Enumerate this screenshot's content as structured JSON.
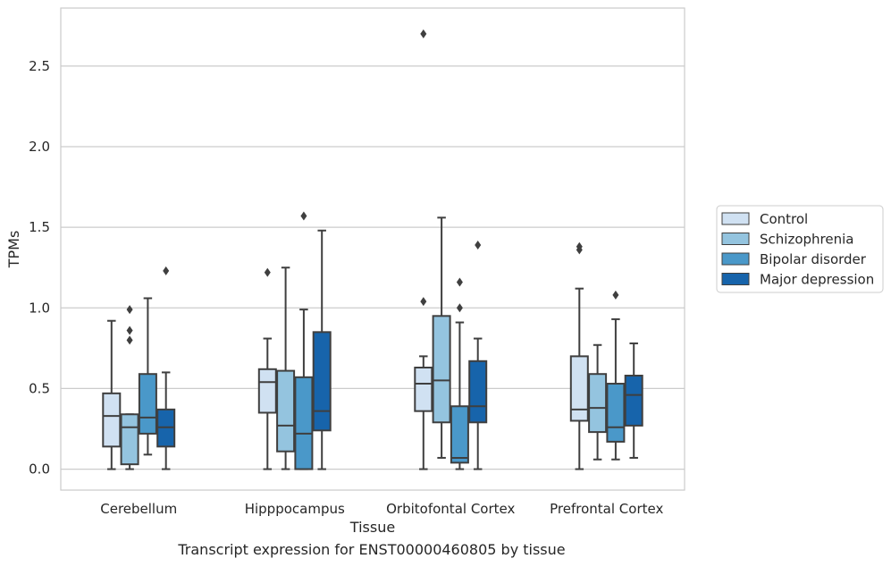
{
  "caption": "Transcript expression for ENST00000460805 by tissue",
  "chart_data": {
    "type": "box",
    "xlabel": "Tissue",
    "ylabel": "TPMs",
    "ylim": [
      -0.13,
      2.86
    ],
    "yticks": [
      "0.0",
      "0.5",
      "1.0",
      "1.5",
      "2.0",
      "2.5"
    ],
    "grid": "horizontal",
    "legend_position": "right",
    "categories": [
      "Cerebellum",
      "Hipppocampus",
      "Orbitofontal Cortex",
      "Prefrontal Cortex"
    ],
    "series": [
      {
        "name": "Control",
        "color": "#d0e1f2",
        "boxes": [
          {
            "whislo": 0.0,
            "q1": 0.14,
            "med": 0.33,
            "q3": 0.47,
            "whishi": 0.92,
            "fliers": []
          },
          {
            "whislo": 0.0,
            "q1": 0.35,
            "med": 0.54,
            "q3": 0.62,
            "whishi": 0.81,
            "fliers": [
              1.22
            ]
          },
          {
            "whislo": 0.0,
            "q1": 0.36,
            "med": 0.53,
            "q3": 0.63,
            "whishi": 0.7,
            "fliers": [
              1.04,
              2.7
            ]
          },
          {
            "whislo": 0.0,
            "q1": 0.3,
            "med": 0.37,
            "q3": 0.7,
            "whishi": 1.12,
            "fliers": [
              1.36,
              1.38
            ]
          }
        ]
      },
      {
        "name": "Schizophrenia",
        "color": "#94c4df",
        "boxes": [
          {
            "whislo": 0.0,
            "q1": 0.03,
            "med": 0.26,
            "q3": 0.34,
            "whishi": 0.34,
            "fliers": [
              0.8,
              0.86,
              0.99
            ]
          },
          {
            "whislo": 0.0,
            "q1": 0.11,
            "med": 0.27,
            "q3": 0.61,
            "whishi": 1.25,
            "fliers": []
          },
          {
            "whislo": 0.07,
            "q1": 0.29,
            "med": 0.55,
            "q3": 0.95,
            "whishi": 1.56,
            "fliers": []
          },
          {
            "whislo": 0.06,
            "q1": 0.23,
            "med": 0.38,
            "q3": 0.59,
            "whishi": 0.77,
            "fliers": []
          }
        ]
      },
      {
        "name": "Bipolar disorder",
        "color": "#4a98c9",
        "boxes": [
          {
            "whislo": 0.09,
            "q1": 0.22,
            "med": 0.32,
            "q3": 0.59,
            "whishi": 1.06,
            "fliers": []
          },
          {
            "whislo": 0.0,
            "q1": 0.0,
            "med": 0.22,
            "q3": 0.57,
            "whishi": 0.99,
            "fliers": [
              1.57
            ]
          },
          {
            "whislo": 0.0,
            "q1": 0.04,
            "med": 0.07,
            "q3": 0.39,
            "whishi": 0.91,
            "fliers": [
              1.0,
              1.16
            ]
          },
          {
            "whislo": 0.06,
            "q1": 0.17,
            "med": 0.26,
            "q3": 0.53,
            "whishi": 0.93,
            "fliers": [
              1.08
            ]
          }
        ]
      },
      {
        "name": "Major depression",
        "color": "#1764ab",
        "boxes": [
          {
            "whislo": 0.0,
            "q1": 0.14,
            "med": 0.26,
            "q3": 0.37,
            "whishi": 0.6,
            "fliers": [
              1.23
            ]
          },
          {
            "whislo": 0.0,
            "q1": 0.24,
            "med": 0.36,
            "q3": 0.85,
            "whishi": 1.48,
            "fliers": []
          },
          {
            "whislo": 0.0,
            "q1": 0.29,
            "med": 0.39,
            "q3": 0.67,
            "whishi": 0.81,
            "fliers": [
              1.39
            ]
          },
          {
            "whislo": 0.07,
            "q1": 0.27,
            "med": 0.46,
            "q3": 0.58,
            "whishi": 0.78,
            "fliers": []
          }
        ]
      }
    ]
  }
}
